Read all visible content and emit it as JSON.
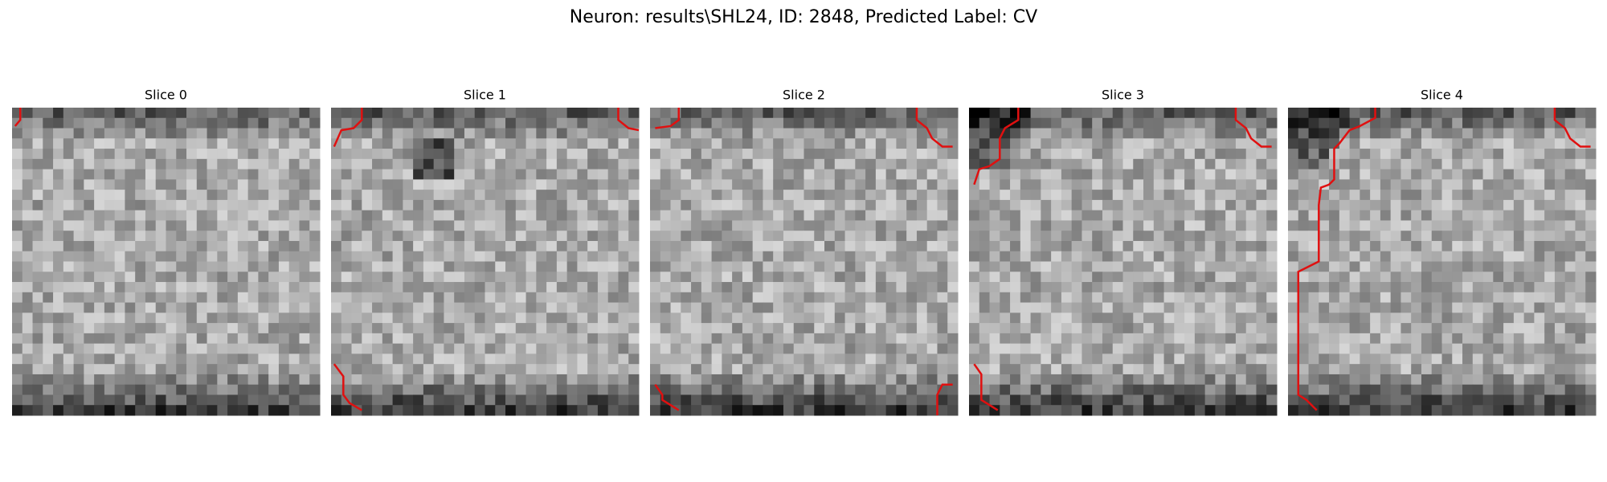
{
  "title": "Neuron: results\\SHL24, ID: 2848, Predicted Label: CV",
  "panels": [
    {
      "title": "Slice 0"
    },
    {
      "title": "Slice 1"
    },
    {
      "title": "Slice 2"
    },
    {
      "title": "Slice 3"
    },
    {
      "title": "Slice 4"
    }
  ]
}
